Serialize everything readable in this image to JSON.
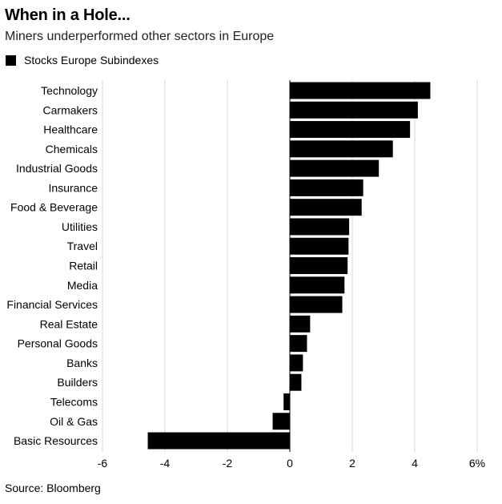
{
  "header": {
    "title": "When in a Hole...",
    "subtitle": "Miners underperformed other sectors in Europe"
  },
  "legend": {
    "label": "Stocks Europe Subindexes"
  },
  "footer": {
    "source": "Source: Bloomberg"
  },
  "colors": {
    "bar": "#000000",
    "grid": "#d9d9d9",
    "zero_line": "#000000"
  },
  "chart_data": {
    "type": "bar",
    "orientation": "horizontal",
    "categories": [
      "Technology",
      "Carmakers",
      "Healthcare",
      "Chemicals",
      "Industrial Goods",
      "Insurance",
      "Food & Beverage",
      "Utilities",
      "Travel",
      "Retail",
      "Media",
      "Financial Services",
      "Real Estate",
      "Personal Goods",
      "Banks",
      "Builders",
      "Telecoms",
      "Oil & Gas",
      "Basic Resources"
    ],
    "series": [
      {
        "name": "Stocks Europe Subindexes",
        "values": [
          4.5,
          4.1,
          3.85,
          3.3,
          2.85,
          2.35,
          2.3,
          1.9,
          1.88,
          1.85,
          1.75,
          1.68,
          0.65,
          0.55,
          0.42,
          0.37,
          -0.2,
          -0.55,
          -4.55
        ]
      }
    ],
    "xlim": [
      -6,
      6
    ],
    "xticks": [
      -6,
      -4,
      -2,
      0,
      2,
      4,
      6
    ],
    "xtick_labels": [
      "-6",
      "-4",
      "-2",
      "0",
      "2",
      "4",
      "6%"
    ],
    "grid": true,
    "legend_position": "top-left"
  }
}
